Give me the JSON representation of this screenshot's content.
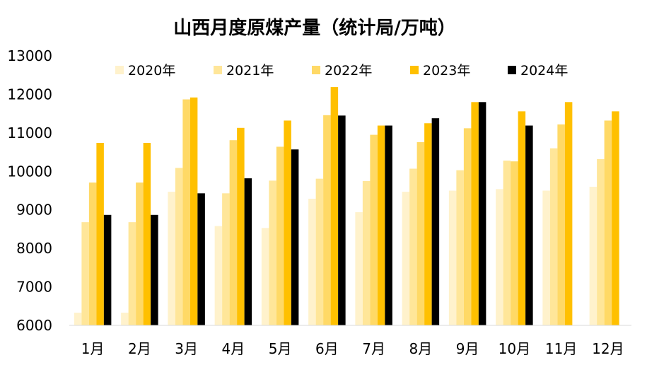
{
  "chart_data": {
    "type": "bar",
    "title": "山西月度原煤产量（统计局/万吨）",
    "xlabel": "",
    "ylabel": "",
    "ylim": [
      6000,
      13000
    ],
    "yticks": [
      6000,
      7000,
      8000,
      9000,
      10000,
      11000,
      12000,
      13000
    ],
    "grid": false,
    "legend_position": "top",
    "categories": [
      "1月",
      "2月",
      "3月",
      "4月",
      "5月",
      "6月",
      "7月",
      "8月",
      "9月",
      "10月",
      "11月",
      "12月"
    ],
    "series": [
      {
        "name": "2020年",
        "color": "#FFF2CC",
        "values": [
          6330,
          6330,
          9470,
          8580,
          8530,
          9290,
          8940,
          9470,
          9500,
          9540,
          9500,
          9600
        ]
      },
      {
        "name": "2021年",
        "color": "#FFE699",
        "values": [
          8680,
          8680,
          10090,
          9430,
          9760,
          9810,
          9750,
          10070,
          10030,
          10280,
          10600,
          10320
        ]
      },
      {
        "name": "2022年",
        "color": "#FFD966",
        "values": [
          9710,
          9710,
          11870,
          10810,
          10640,
          11460,
          10950,
          10760,
          11120,
          10260,
          11220,
          11320
        ]
      },
      {
        "name": "2023年",
        "color": "#FFC000",
        "values": [
          10740,
          10740,
          11920,
          11130,
          11320,
          12190,
          11190,
          11250,
          11800,
          11560,
          11800,
          11560
        ]
      },
      {
        "name": "2024年",
        "color": "#000000",
        "values": [
          8870,
          8870,
          9430,
          9820,
          10570,
          11450,
          11190,
          11380,
          11800,
          11190,
          null,
          null
        ]
      }
    ]
  }
}
